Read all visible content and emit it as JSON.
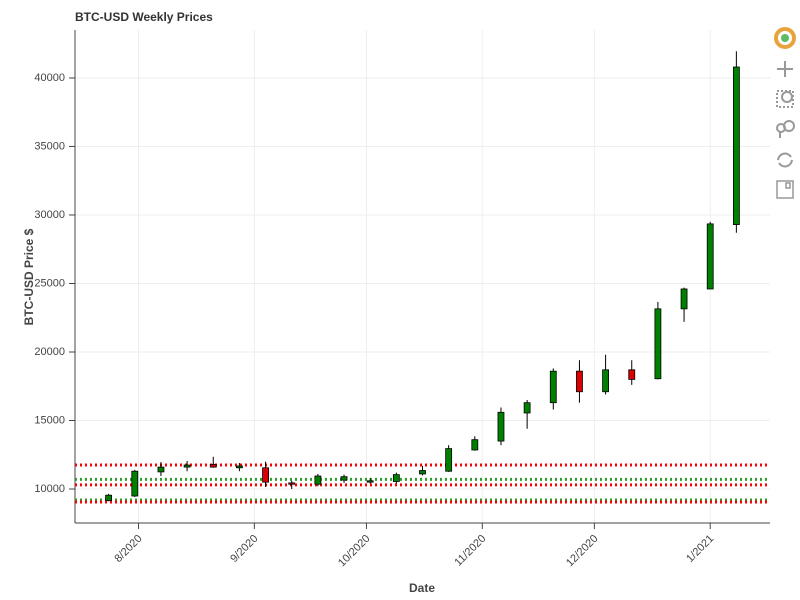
{
  "chart_data": {
    "type": "candlestick",
    "title": "BTC-USD Weekly Prices",
    "x_label": "Date",
    "y_label": "BTC-USD Price $",
    "x": [
      "2020-07-24",
      "2020-07-31",
      "2020-08-07",
      "2020-08-14",
      "2020-08-21",
      "2020-08-28",
      "2020-09-04",
      "2020-09-11",
      "2020-09-18",
      "2020-09-25",
      "2020-10-02",
      "2020-10-09",
      "2020-10-16",
      "2020-10-23",
      "2020-10-30",
      "2020-11-06",
      "2020-11-13",
      "2020-11-20",
      "2020-11-27",
      "2020-12-04",
      "2020-12-11",
      "2020-12-18",
      "2020-12-25",
      "2021-01-01",
      "2021-01-08"
    ],
    "open": [
      9160,
      9490,
      11250,
      11600,
      11800,
      11550,
      11550,
      10450,
      10350,
      10650,
      10500,
      10550,
      11100,
      11300,
      12850,
      13500,
      15550,
      16300,
      18600,
      17100,
      18700,
      18050,
      23150,
      24600,
      29300
    ],
    "high": [
      9650,
      11400,
      11970,
      12050,
      12350,
      11900,
      12000,
      10600,
      11100,
      11050,
      10800,
      11200,
      11700,
      13200,
      13850,
      15950,
      16500,
      18800,
      19400,
      19800,
      19400,
      23650,
      24700,
      29500,
      41950
    ],
    "low": [
      9100,
      9420,
      10950,
      11300,
      11550,
      11300,
      10150,
      10000,
      10200,
      10450,
      10400,
      10400,
      11000,
      11250,
      12800,
      13200,
      14400,
      15800,
      16300,
      16900,
      17600,
      18000,
      22200,
      24600,
      28700
    ],
    "close": [
      9550,
      11300,
      11600,
      11750,
      11600,
      11680,
      10500,
      10350,
      10950,
      10900,
      10600,
      11050,
      11350,
      12950,
      13600,
      15600,
      16300,
      18600,
      17100,
      18700,
      18000,
      23150,
      24600,
      29350,
      40800
    ],
    "up_color": "#008000",
    "down_color": "#dd0000",
    "hlines": [
      {
        "value": 11750,
        "color": "#ff0000"
      },
      {
        "value": 10700,
        "color": "#2ca02c"
      },
      {
        "value": 10300,
        "color": "#ff0000"
      },
      {
        "value": 9200,
        "color": "#2ca02c"
      },
      {
        "value": 9050,
        "color": "#ff0000"
      }
    ],
    "xlim": [
      "2020-07-15",
      "2021-01-17"
    ],
    "xticks": [
      {
        "value": "2020-08",
        "label": "8/2020"
      },
      {
        "value": "2020-09",
        "label": "9/2020"
      },
      {
        "value": "2020-10",
        "label": "10/2020"
      },
      {
        "value": "2020-11",
        "label": "11/2020"
      },
      {
        "value": "2020-12",
        "label": "12/2020"
      },
      {
        "value": "2021-01",
        "label": "1/2021"
      }
    ],
    "ylim": [
      7520,
      43500
    ],
    "yticks": [
      10000,
      15000,
      20000,
      25000,
      30000,
      35000,
      40000
    ],
    "grid": true
  }
}
